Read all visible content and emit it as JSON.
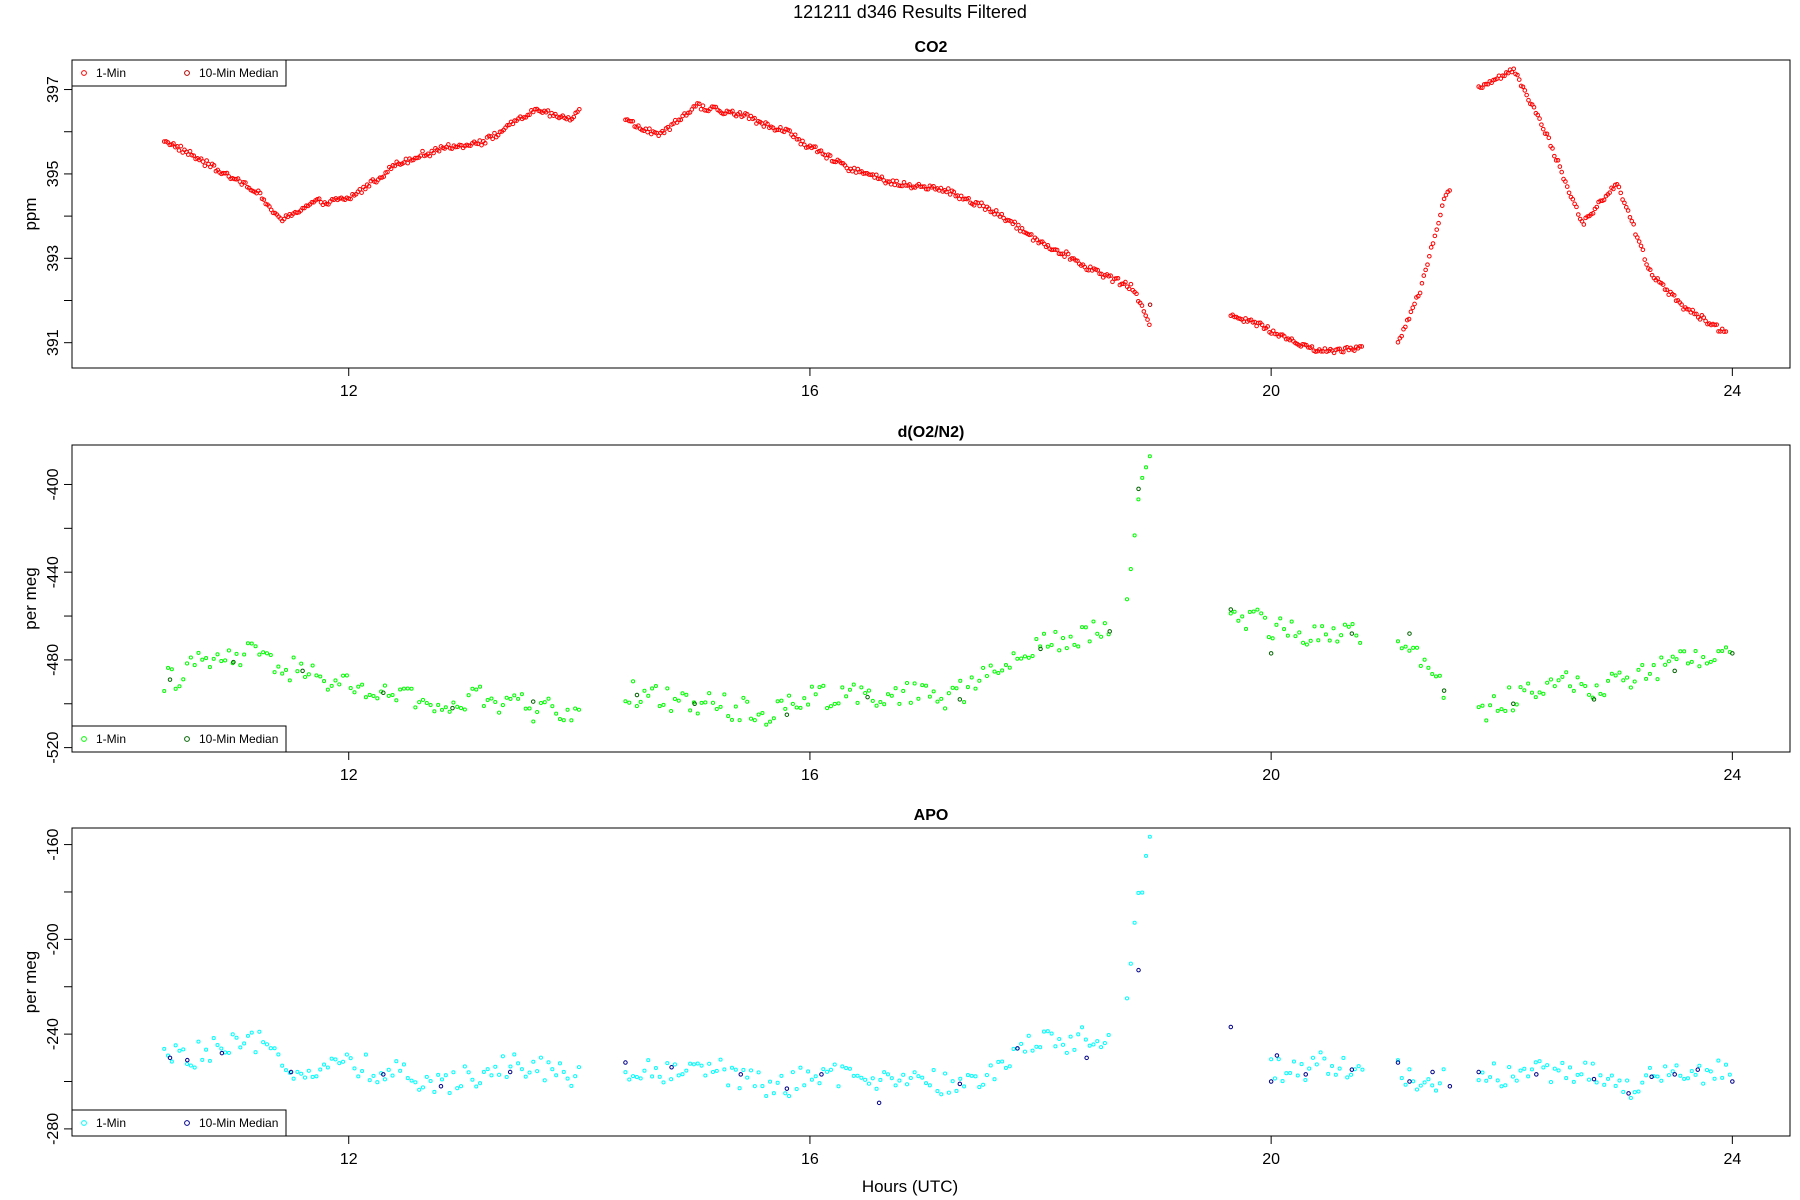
{
  "title": "121211   d346   Results Filtered",
  "x_axis_label": "Hours (UTC)",
  "chart_data": [
    {
      "type": "scatter",
      "title": "CO2",
      "ylabel": "ppm",
      "xlim": [
        9.6,
        24.5
      ],
      "ylim": [
        390.4,
        397.7
      ],
      "xticks": [
        12,
        16,
        20,
        24
      ],
      "yticks": [
        391,
        392,
        393,
        394,
        395,
        396,
        397
      ],
      "ytick_labels": [
        "391",
        "",
        "393",
        "",
        "395",
        "",
        "397"
      ],
      "legend": {
        "position": "top-left",
        "entries": [
          "1-Min",
          "10-Min Median"
        ]
      },
      "series": [
        {
          "name": "1-Min",
          "color": "#ff0000",
          "segments": [
            {
              "x": [
                10.4,
                10.8,
                11.2,
                11.4,
                11.7,
                12.0,
                12.4,
                12.8,
                13.2,
                13.6,
                13.9,
                14.0
              ],
              "y": [
                395.8,
                395.2,
                394.6,
                393.9,
                394.3,
                394.4,
                395.2,
                395.6,
                395.8,
                396.5,
                396.3,
                396.5
              ]
            },
            {
              "x": [
                14.4,
                14.7,
                15.0,
                15.4,
                15.8,
                16.2,
                16.7,
                17.2,
                17.6,
                18.0,
                18.4,
                18.8,
                18.95
              ],
              "y": [
                396.3,
                395.9,
                396.6,
                396.4,
                396.0,
                395.3,
                394.8,
                394.6,
                394.1,
                393.4,
                392.8,
                392.3,
                391.4
              ]
            },
            {
              "x": [
                19.65,
                20.0,
                20.4,
                20.8
              ],
              "y": [
                391.7,
                391.3,
                390.8,
                390.9
              ]
            },
            {
              "x": [
                21.1,
                21.3,
                21.5,
                21.55
              ],
              "y": [
                391.0,
                392.3,
                394.4,
                394.6
              ]
            },
            {
              "x": [
                21.8,
                22.1,
                22.4,
                22.7,
                23.0,
                23.3,
                23.6,
                23.95
              ],
              "y": [
                397.0,
                397.5,
                395.9,
                393.8,
                394.8,
                392.6,
                391.8,
                391.2
              ]
            }
          ]
        },
        {
          "name": "10-Min Median",
          "color": "#b00000",
          "points": {
            "x": [
              18.95
            ],
            "y": [
              391.9
            ]
          }
        }
      ]
    },
    {
      "type": "scatter",
      "title": "d(O2/N2)",
      "ylabel": "per meg",
      "xlim": [
        9.6,
        24.5
      ],
      "ylim": [
        -522,
        -382
      ],
      "xticks": [
        12,
        16,
        20,
        24
      ],
      "yticks": [
        -520,
        -500,
        -480,
        -460,
        -440,
        -420,
        -400
      ],
      "ytick_labels": [
        "-520",
        "",
        "-480",
        "",
        "-440",
        "",
        "-400"
      ],
      "legend": {
        "position": "bottom-left",
        "entries": [
          "1-Min",
          "10-Min Median"
        ]
      },
      "series": [
        {
          "name": "1-Min",
          "color": "#00ff00",
          "segments": [
            {
              "x": [
                10.4,
                10.8,
                11.2,
                11.6,
                12.0,
                12.4,
                12.8,
                13.2,
                13.6,
                14.0
              ],
              "y": [
                -489,
                -481,
                -478,
                -486,
                -492,
                -497,
                -501,
                -498,
                -502,
                -503
              ]
            },
            {
              "x": [
                14.4,
                14.8,
                15.2,
                15.6,
                16.0,
                16.4,
                16.8,
                17.2,
                17.6,
                18.0,
                18.4,
                18.6
              ],
              "y": [
                -495,
                -499,
                -501,
                -505,
                -497,
                -495,
                -496,
                -498,
                -486,
                -474,
                -468,
                -466
              ]
            },
            {
              "x": [
                18.75,
                18.85,
                18.95
              ],
              "y": [
                -448,
                -410,
                -387
              ]
            },
            {
              "x": [
                19.65,
                20.0,
                20.4,
                20.8
              ],
              "y": [
                -457,
                -465,
                -468,
                -469
              ]
            },
            {
              "x": [
                21.1,
                21.3,
                21.5
              ],
              "y": [
                -468,
                -480,
                -494
              ]
            },
            {
              "x": [
                21.8,
                22.1,
                22.5,
                22.8,
                23.2,
                23.6,
                24.0
              ],
              "y": [
                -505,
                -498,
                -490,
                -493,
                -485,
                -478,
                -475
              ]
            }
          ]
        },
        {
          "name": "10-Min Median",
          "color": "#006400",
          "points": {
            "x": [
              10.45,
              11.0,
              11.6,
              12.3,
              12.9,
              13.6,
              14.5,
              15.0,
              15.8,
              16.5,
              17.3,
              18.0,
              18.6,
              18.85,
              19.65,
              20.0,
              20.7,
              21.2,
              21.5,
              22.1,
              22.8,
              23.5,
              24.0
            ],
            "y": [
              -489,
              -481,
              -485,
              -495,
              -502,
              -499,
              -496,
              -500,
              -505,
              -497,
              -498,
              -475,
              -467,
              -402,
              -457,
              -477,
              -468,
              -468,
              -494,
              -500,
              -498,
              -485,
              -477
            ]
          }
        }
      ]
    },
    {
      "type": "scatter",
      "title": "APO",
      "ylabel": "per meg",
      "xlim": [
        9.6,
        24.5
      ],
      "ylim": [
        -283,
        -153
      ],
      "xticks": [
        12,
        16,
        20,
        24
      ],
      "yticks": [
        -280,
        -260,
        -240,
        -220,
        -200,
        -180,
        -160
      ],
      "ytick_labels": [
        "-280",
        "",
        "-240",
        "",
        "-200",
        "",
        "-160"
      ],
      "legend": {
        "position": "bottom-left",
        "entries": [
          "1-Min",
          "10-Min Median"
        ]
      },
      "series": [
        {
          "name": "1-Min",
          "color": "#00ffff",
          "segments": [
            {
              "x": [
                10.4,
                10.8,
                11.2,
                11.6,
                12.0,
                12.4,
                12.8,
                13.2,
                13.6,
                14.0
              ],
              "y": [
                -250,
                -248,
                -245,
                -255,
                -252,
                -257,
                -262,
                -254,
                -253,
                -259
              ]
            },
            {
              "x": [
                14.4,
                14.8,
                15.2,
                15.6,
                16.0,
                16.4,
                16.8,
                17.2,
                17.6,
                18.0,
                18.4,
                18.6
              ],
              "y": [
                -255,
                -256,
                -254,
                -262,
                -259,
                -257,
                -261,
                -261,
                -255,
                -244,
                -241,
                -245
              ]
            },
            {
              "x": [
                18.75,
                18.85,
                18.95
              ],
              "y": [
                -222,
                -185,
                -160
              ]
            },
            {
              "x": [
                20.0,
                20.4,
                20.8
              ],
              "y": [
                -255,
                -252,
                -256
              ]
            },
            {
              "x": [
                21.1,
                21.3,
                21.5
              ],
              "y": [
                -255,
                -259,
                -260
              ]
            },
            {
              "x": [
                21.8,
                22.2,
                22.6,
                23.0,
                23.4,
                23.8,
                24.0
              ],
              "y": [
                -256,
                -257,
                -255,
                -262,
                -258,
                -256,
                -257
              ]
            }
          ]
        },
        {
          "name": "10-Min Median",
          "color": "#00008b",
          "points": {
            "x": [
              10.45,
              10.6,
              10.9,
              11.5,
              12.3,
              12.8,
              13.4,
              14.4,
              14.8,
              15.4,
              15.8,
              16.1,
              16.6,
              17.3,
              17.8,
              18.4,
              18.85,
              19.65,
              20.0,
              20.05,
              20.3,
              20.7,
              21.1,
              21.2,
              21.4,
              21.55,
              21.8,
              22.3,
              22.8,
              23.1,
              23.3,
              23.5,
              23.7,
              24.0
            ],
            "y": [
              -250,
              -251,
              -248,
              -256,
              -257,
              -262,
              -256,
              -252,
              -254,
              -257,
              -263,
              -257,
              -269,
              -261,
              -246,
              -250,
              -213,
              -237,
              -260,
              -249,
              -257,
              -255,
              -252,
              -260,
              -256,
              -262,
              -256,
              -257,
              -259,
              -265,
              -258,
              -257,
              -255,
              -260
            ]
          }
        }
      ]
    }
  ]
}
